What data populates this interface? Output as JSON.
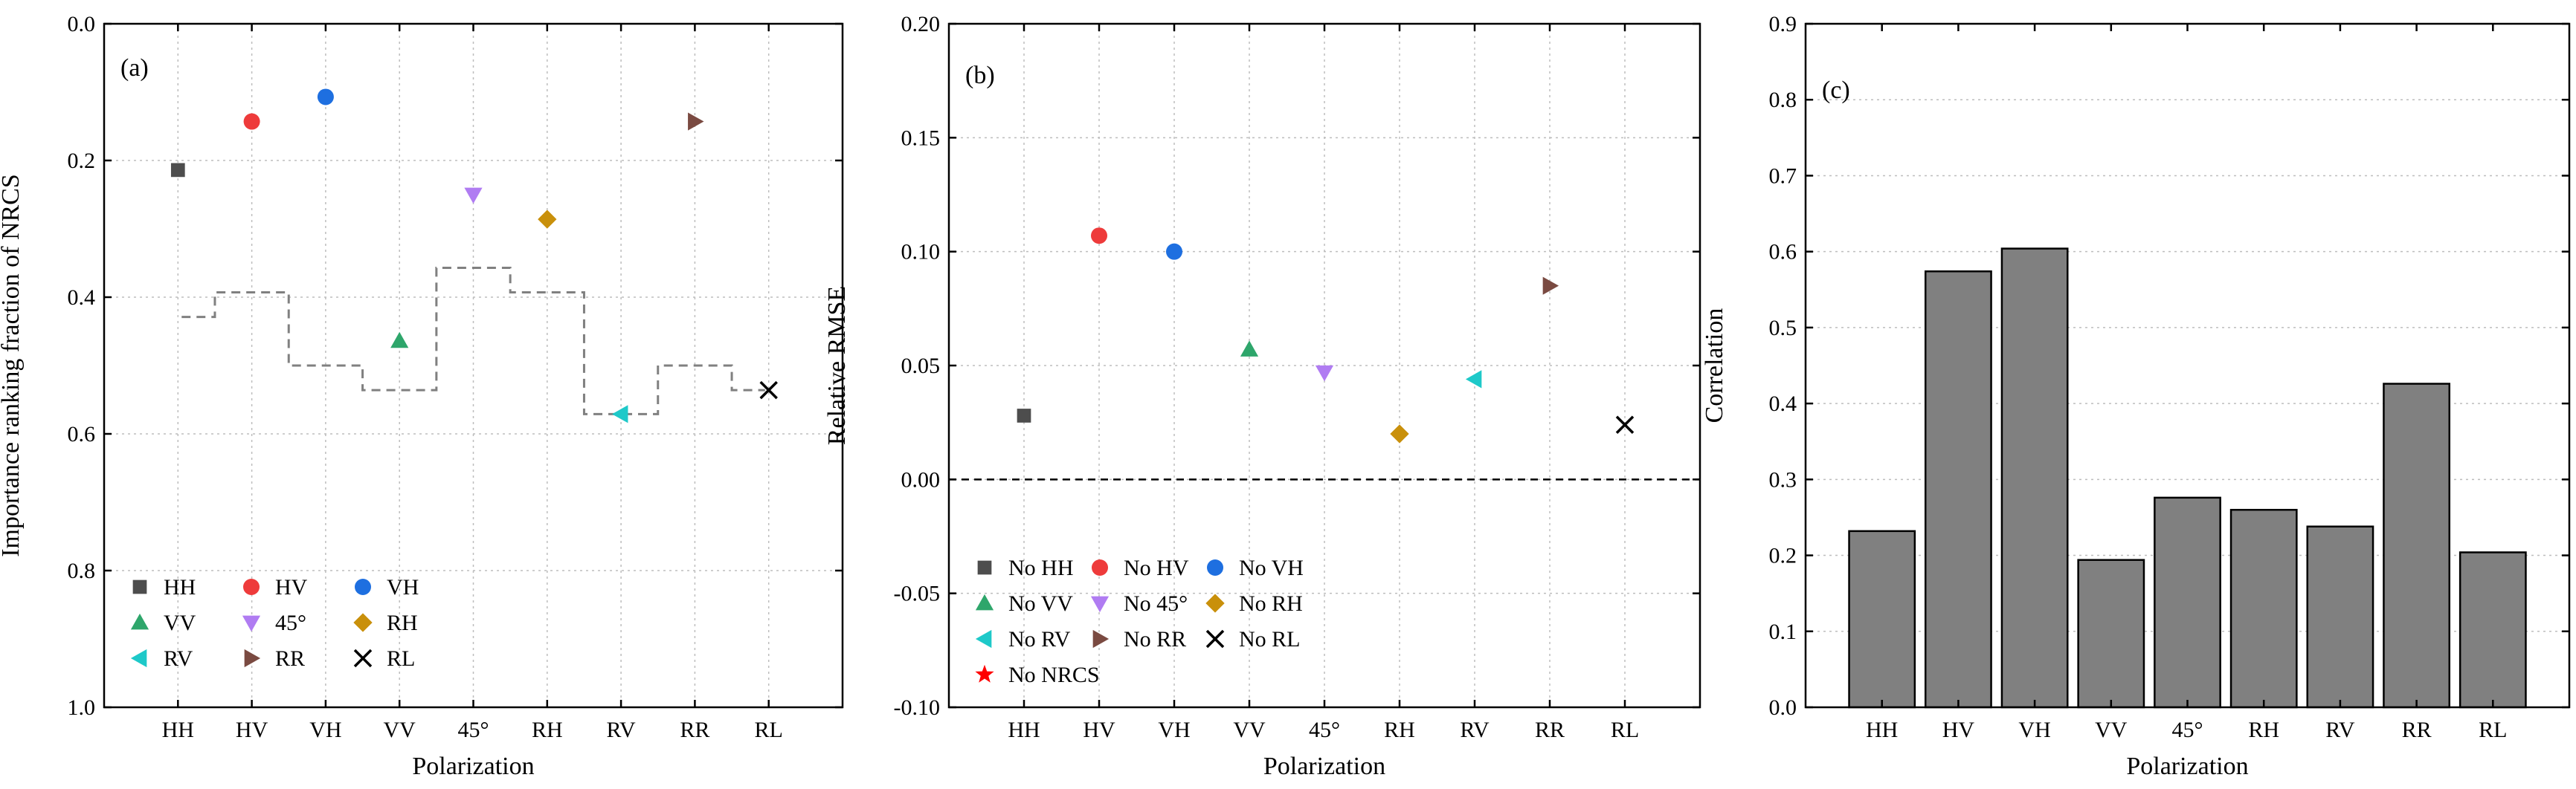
{
  "colors": {
    "HH": "#4d4d4d",
    "HV": "#ee3b3b",
    "VH": "#1e6fe0",
    "VV": "#2ea66b",
    "45": "#b07cf2",
    "RH": "#c9900b",
    "RV": "#1ec9c9",
    "RR": "#7a4a41",
    "RL": "#000000",
    "NRCS": "#ff0000",
    "bar": "#808080",
    "step": "#808080"
  },
  "chart_data": [
    {
      "panel": "(a)",
      "type": "scatter",
      "xlabel": "Polarization",
      "ylabel": "Importance ranking fraction of NRCS",
      "categories": [
        "HH",
        "HV",
        "VH",
        "VV",
        "45°",
        "RH",
        "RV",
        "RR",
        "RL"
      ],
      "ylim": [
        1.0,
        0.0
      ],
      "y_inverted": true,
      "yticks": [
        "0.0",
        "0.2",
        "0.4",
        "0.6",
        "0.8",
        "1.0"
      ],
      "ytick_values": [
        0.0,
        0.2,
        0.4,
        0.6,
        0.8,
        1.0
      ],
      "points": [
        {
          "cat": "HH",
          "label": "HH",
          "value": 0.214,
          "marker": "square",
          "color": "HH"
        },
        {
          "cat": "HV",
          "label": "HV",
          "value": 0.143,
          "marker": "circle",
          "color": "HV"
        },
        {
          "cat": "VH",
          "label": "VH",
          "value": 0.107,
          "marker": "circle",
          "color": "VH"
        },
        {
          "cat": "VV",
          "label": "VV",
          "value": 0.464,
          "marker": "tri-up",
          "color": "VV"
        },
        {
          "cat": "45°",
          "label": "45°",
          "value": 0.25,
          "marker": "tri-down",
          "color": "45"
        },
        {
          "cat": "RH",
          "label": "RH",
          "value": 0.286,
          "marker": "diamond",
          "color": "RH"
        },
        {
          "cat": "RV",
          "label": "RV",
          "value": 0.571,
          "marker": "tri-left",
          "color": "RV"
        },
        {
          "cat": "RR",
          "label": "RR",
          "value": 0.143,
          "marker": "tri-right",
          "color": "RR"
        },
        {
          "cat": "RL",
          "label": "RL",
          "value": 0.536,
          "marker": "x",
          "color": "RL"
        }
      ],
      "step_line": {
        "style": "dashed",
        "values": [
          0.429,
          0.393,
          0.5,
          0.536,
          0.357,
          0.393,
          0.571,
          0.5,
          0.536
        ]
      },
      "legend_position": "lower-left",
      "legend_columns": 3
    },
    {
      "panel": "(b)",
      "type": "scatter",
      "xlabel": "Polarization",
      "ylabel": "Relative RMSE",
      "categories": [
        "HH",
        "HV",
        "VH",
        "VV",
        "45°",
        "RH",
        "RV",
        "RR",
        "RL"
      ],
      "ylim": [
        -0.1,
        0.2
      ],
      "yticks": [
        "-0.10",
        "-0.05",
        "0.00",
        "0.05",
        "0.10",
        "0.15",
        "0.20"
      ],
      "ytick_values": [
        -0.1,
        -0.05,
        0.0,
        0.05,
        0.1,
        0.15,
        0.2
      ],
      "zero_line": {
        "y": 0.0,
        "style": "dashed"
      },
      "points": [
        {
          "cat": "HH",
          "label": "No HH",
          "value": 0.028,
          "marker": "square",
          "color": "HH"
        },
        {
          "cat": "HV",
          "label": "No HV",
          "value": 0.107,
          "marker": "circle",
          "color": "HV"
        },
        {
          "cat": "VH",
          "label": "No VH",
          "value": 0.1,
          "marker": "circle",
          "color": "VH"
        },
        {
          "cat": "VV",
          "label": "No VV",
          "value": 0.057,
          "marker": "tri-up",
          "color": "VV"
        },
        {
          "cat": "45°",
          "label": "No 45°",
          "value": 0.047,
          "marker": "tri-down",
          "color": "45"
        },
        {
          "cat": "RH",
          "label": "No RH",
          "value": 0.02,
          "marker": "diamond",
          "color": "RH"
        },
        {
          "cat": "RV",
          "label": "No RV",
          "value": 0.044,
          "marker": "tri-left",
          "color": "RV"
        },
        {
          "cat": "RR",
          "label": "No RR",
          "value": 0.085,
          "marker": "tri-right",
          "color": "RR"
        },
        {
          "cat": "RL",
          "label": "No RL",
          "value": 0.024,
          "marker": "x",
          "color": "RL"
        }
      ],
      "extra_legend": [
        {
          "label": "No NRCS",
          "marker": "star",
          "color": "NRCS"
        }
      ],
      "legend_position": "lower-left",
      "legend_columns": 3
    },
    {
      "panel": "(c)",
      "type": "bar",
      "xlabel": "Polarization",
      "ylabel": "Correlation",
      "categories": [
        "HH",
        "HV",
        "VH",
        "VV",
        "45°",
        "RH",
        "RV",
        "RR",
        "RL"
      ],
      "values": [
        0.232,
        0.574,
        0.604,
        0.194,
        0.276,
        0.26,
        0.238,
        0.426,
        0.204
      ],
      "ylim": [
        0.0,
        0.9
      ],
      "yticks": [
        "0.0",
        "0.1",
        "0.2",
        "0.3",
        "0.4",
        "0.5",
        "0.6",
        "0.7",
        "0.8",
        "0.9"
      ],
      "ytick_values": [
        0.0,
        0.1,
        0.2,
        0.3,
        0.4,
        0.5,
        0.6,
        0.7,
        0.8,
        0.9
      ]
    }
  ]
}
